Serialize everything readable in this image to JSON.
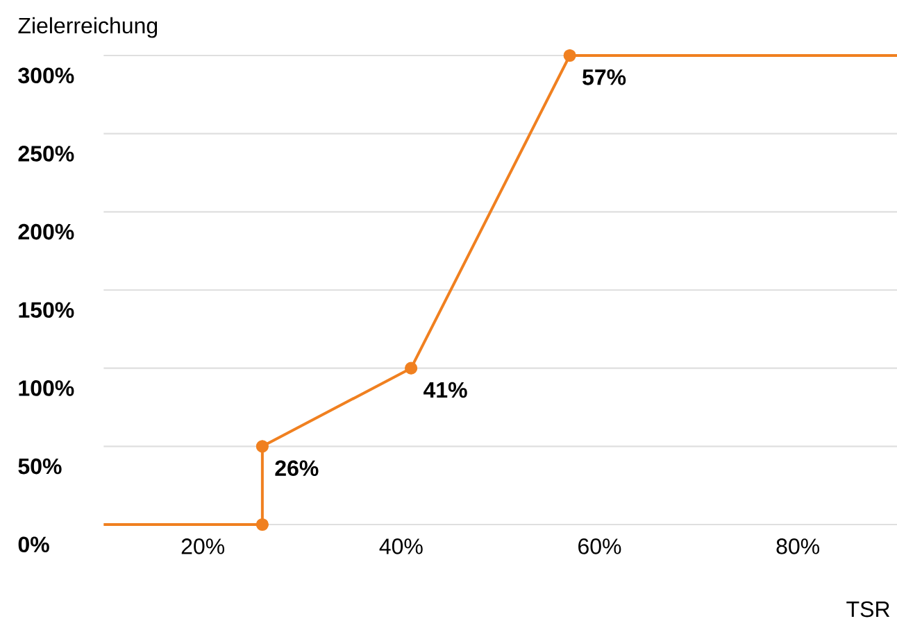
{
  "chart_data": {
    "type": "line",
    "xlabel": "TSR",
    "ylabel": "Zielerreichung",
    "xlim": [
      10,
      90
    ],
    "ylim": [
      0,
      300
    ],
    "xticks": [
      {
        "value": 20,
        "label": "20%"
      },
      {
        "value": 40,
        "label": "40%"
      },
      {
        "value": 60,
        "label": "60%"
      },
      {
        "value": 80,
        "label": "80%"
      }
    ],
    "yticks": [
      {
        "value": 0,
        "label": "0%"
      },
      {
        "value": 50,
        "label": "50%"
      },
      {
        "value": 100,
        "label": "100%"
      },
      {
        "value": 150,
        "label": "150%"
      },
      {
        "value": 200,
        "label": "200%"
      },
      {
        "value": 250,
        "label": "250%"
      },
      {
        "value": 300,
        "label": "300%"
      }
    ],
    "grid": "y",
    "series": [
      {
        "color": "#f08020",
        "marker": "none",
        "line_style": "solid",
        "x": [
          10,
          26,
          26,
          41,
          57,
          90
        ],
        "values": [
          0,
          0,
          50,
          100,
          300,
          300
        ]
      },
      {
        "type": "scatter",
        "color": "#f08020",
        "marker": "circle",
        "x": [
          26,
          26,
          41,
          57
        ],
        "values": [
          0,
          50,
          100,
          300
        ]
      }
    ],
    "annotations": [
      {
        "text": "26%",
        "x": 26,
        "y": 50
      },
      {
        "text": "41%",
        "x": 41,
        "y": 100
      },
      {
        "text": "57%",
        "x": 57,
        "y": 300
      }
    ]
  }
}
